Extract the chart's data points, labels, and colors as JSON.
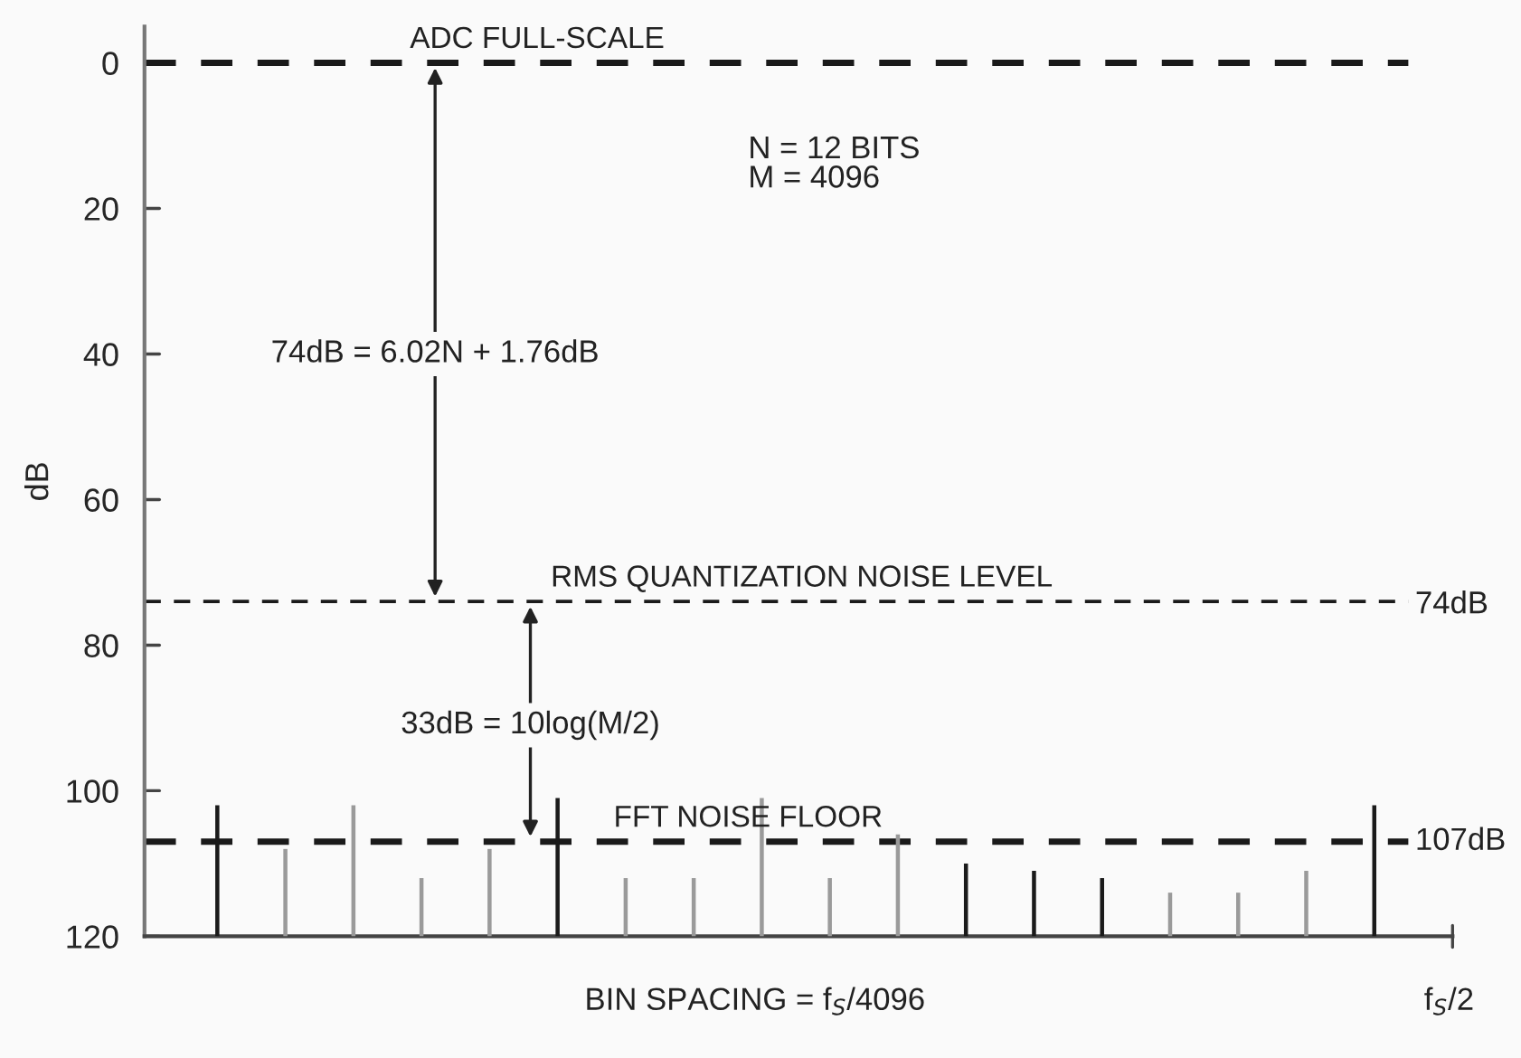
{
  "chart_data": {
    "type": "bar",
    "ylabel": "dB",
    "categories": [
      null,
      null,
      null,
      null,
      null,
      null,
      null,
      null,
      null,
      null,
      null,
      null,
      null,
      null,
      null,
      null,
      null,
      null
    ],
    "base": [
      120,
      120,
      120,
      120,
      120,
      120,
      120,
      120,
      120,
      120,
      120,
      120,
      120,
      120,
      120,
      120,
      120,
      120
    ],
    "values": [
      -18,
      -12,
      -18,
      -8,
      -12,
      -19,
      -8,
      -8,
      -19,
      -8,
      -14,
      -10,
      -9,
      -8,
      -6,
      -6,
      -9,
      -18
    ],
    "colors": [
      "#1a1a1a",
      "#9a9a9a",
      "#9a9a9a",
      "#9a9a9a",
      "#9a9a9a",
      "#1a1a1a",
      "#9a9a9a",
      "#9a9a9a",
      "#9a9a9a",
      "#9a9a9a",
      "#9a9a9a",
      "#1a1a1a",
      "#1a1a1a",
      "#1a1a1a",
      "#9a9a9a",
      "#9a9a9a",
      "#9a9a9a",
      "#1a1a1a"
    ],
    "ylim": [
      120,
      -5
    ],
    "yticks": [
      0,
      20,
      40,
      60,
      80,
      100,
      120
    ],
    "tick_labels": "y",
    "grid": false,
    "ref_lines": [
      {
        "axis": "y",
        "value": 0,
        "label": "ADC FULL-SCALE",
        "line_style": "dashed",
        "color": "#1a1a1a"
      },
      {
        "axis": "y",
        "value": 74,
        "label": "RMS QUANTIZATION NOISE LEVEL",
        "line_style": "dashed",
        "color": "#1a1a1a"
      },
      {
        "axis": "y",
        "value": 107,
        "label": "FFT NOISE FLOOR",
        "line_style": "dashed",
        "color": "#1a1a1a"
      }
    ],
    "annotations": [
      "N = 12 BITS\nM = 4096",
      "74dB = 6.02N + 1.76dB",
      "33dB = 10log(M/2)",
      "74dB",
      "107dB",
      "BIN SPACING = f$_{S}$/4096",
      "f$_{S}$/2"
    ]
  }
}
